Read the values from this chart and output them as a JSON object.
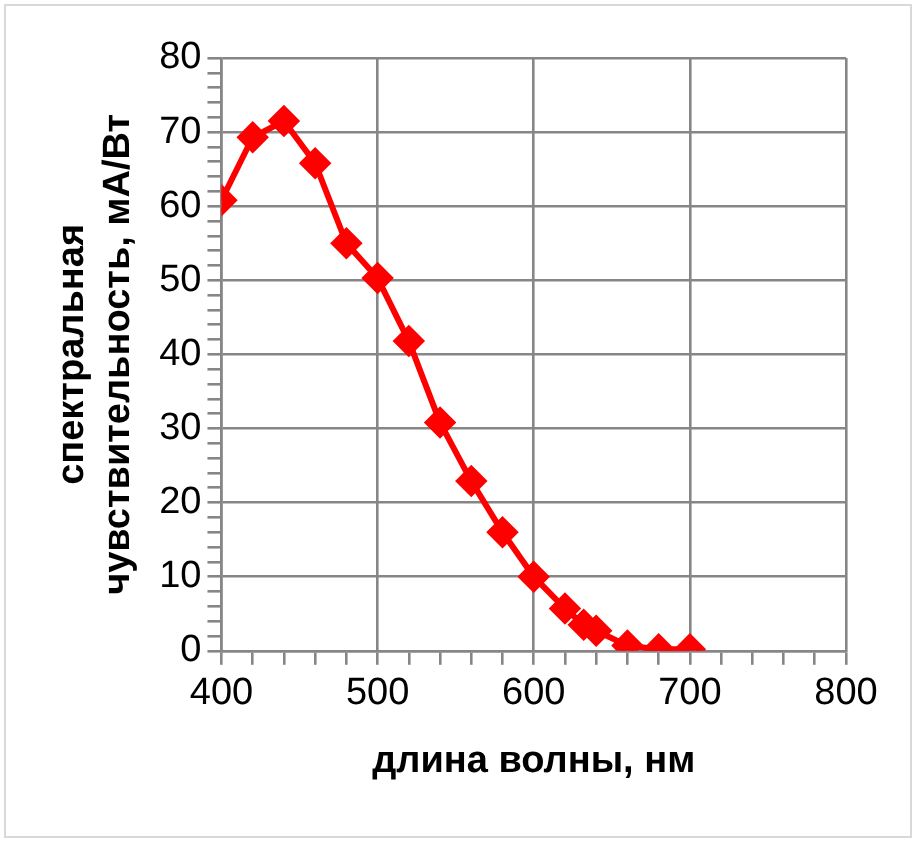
{
  "chart_data": {
    "type": "line",
    "xlabel": "длина волны, нм",
    "ylabel": "спектральная чувствительность, мА/Вт",
    "x": [
      400,
      420,
      440,
      460,
      480,
      500,
      520,
      540,
      560,
      580,
      600,
      620,
      632,
      640,
      660,
      680,
      700
    ],
    "series": [
      {
        "color": "#ff0000",
        "values": [
          60.8,
          69.3,
          71.5,
          65.8,
          55,
          50.3,
          41.8,
          30.8,
          22.9,
          16,
          10,
          5.7,
          3.5,
          2.7,
          0.7,
          0.2,
          0.2
        ]
      }
    ],
    "xlim": [
      400,
      800
    ],
    "xticks": [
      400,
      {
        "value": 420,
        "label": null
      },
      {
        "value": 440,
        "label": null
      },
      {
        "value": 460,
        "label": null
      },
      {
        "value": 480,
        "label": null
      },
      500,
      {
        "value": 520,
        "label": null
      },
      {
        "value": 540,
        "label": null
      },
      {
        "value": 560,
        "label": null
      },
      {
        "value": 580,
        "label": null
      },
      600,
      {
        "value": 620,
        "label": null
      },
      {
        "value": 640,
        "label": null
      },
      {
        "value": 660,
        "label": null
      },
      {
        "value": 680,
        "label": null
      },
      700,
      {
        "value": 720,
        "label": null
      },
      {
        "value": 740,
        "label": null
      },
      {
        "value": 760,
        "label": null
      },
      {
        "value": 780,
        "label": null
      },
      800
    ],
    "ylim": [
      0,
      80
    ],
    "yticks": [
      0,
      {
        "value": 2,
        "label": null
      },
      {
        "value": 4,
        "label": null
      },
      {
        "value": 6,
        "label": null
      },
      {
        "value": 8,
        "label": null
      },
      10,
      {
        "value": 12,
        "label": null
      },
      {
        "value": 14,
        "label": null
      },
      {
        "value": 16,
        "label": null
      },
      {
        "value": 18,
        "label": null
      },
      20,
      {
        "value": 22,
        "label": null
      },
      {
        "value": 24,
        "label": null
      },
      {
        "value": 26,
        "label": null
      },
      {
        "value": 28,
        "label": null
      },
      30,
      {
        "value": 32,
        "label": null
      },
      {
        "value": 34,
        "label": null
      },
      {
        "value": 36,
        "label": null
      },
      {
        "value": 38,
        "label": null
      },
      40,
      {
        "value": 42,
        "label": null
      },
      {
        "value": 44,
        "label": null
      },
      {
        "value": 46,
        "label": null
      },
      {
        "value": 48,
        "label": null
      },
      50,
      {
        "value": 52,
        "label": null
      },
      {
        "value": 54,
        "label": null
      },
      {
        "value": 56,
        "label": null
      },
      {
        "value": 58,
        "label": null
      },
      60,
      {
        "value": 62,
        "label": null
      },
      {
        "value": 64,
        "label": null
      },
      {
        "value": 66,
        "label": null
      },
      {
        "value": 68,
        "label": null
      },
      70,
      {
        "value": 72,
        "label": null
      },
      {
        "value": 74,
        "label": null
      },
      {
        "value": 76,
        "label": null
      },
      {
        "value": 78,
        "label": null
      },
      80
    ],
    "grid": true,
    "legend": false,
    "marker": "diamond",
    "line_style": "solid"
  }
}
